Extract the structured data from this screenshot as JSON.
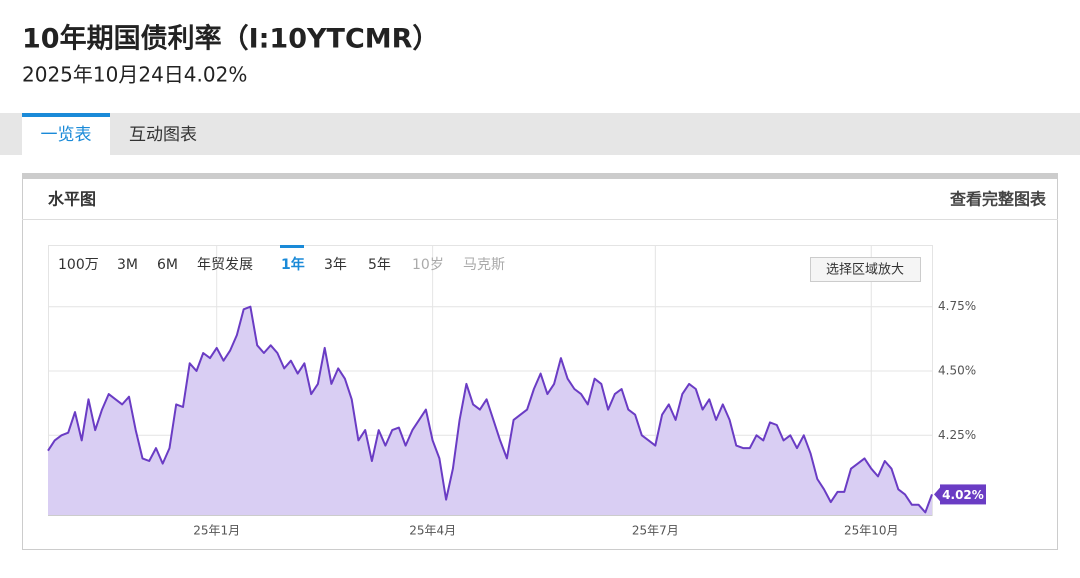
{
  "header": {
    "title": "10年期国债利率（I:10YTCMR）",
    "subtitle": "2025年10月24日4.02%"
  },
  "tabs": [
    "一览表",
    "互动图表"
  ],
  "panel": {
    "title": "水平图",
    "link": "查看完整图表"
  },
  "range_buttons": [
    "100万",
    "3M",
    "6M",
    "年贸发展",
    "1年",
    "3年",
    "5年",
    "10岁",
    "马克斯"
  ],
  "zoom_button": "选择区域放大",
  "chart_data": {
    "type": "line",
    "color": "#6a3cc4",
    "fill_color": "#d9cef3",
    "categories": [
      null,
      null,
      null,
      null,
      null,
      null,
      null,
      null,
      null,
      null,
      null,
      null,
      null,
      null,
      null,
      null,
      null,
      null,
      null,
      null,
      null,
      null,
      null,
      null,
      null,
      "25年1月",
      null,
      null,
      null,
      null,
      null,
      null,
      null,
      null,
      null,
      null,
      null,
      null,
      null,
      null,
      null,
      null,
      null,
      null,
      null,
      null,
      null,
      null,
      null,
      null,
      null,
      null,
      null,
      null,
      null,
      null,
      null,
      "25年4月",
      null,
      null,
      null,
      null,
      null,
      null,
      null,
      null,
      null,
      null,
      null,
      null,
      null,
      null,
      null,
      null,
      null,
      null,
      null,
      null,
      null,
      null,
      null,
      null,
      null,
      null,
      null,
      null,
      null,
      null,
      null,
      null,
      "25年7月",
      null,
      null,
      null,
      null,
      null,
      null,
      null,
      null,
      null,
      null,
      null,
      null,
      null,
      null,
      null,
      null,
      null,
      null,
      null,
      null,
      null,
      null,
      null,
      null,
      null,
      null,
      null,
      null,
      null,
      null,
      null,
      "25年10月",
      null,
      null,
      null,
      null,
      null,
      null,
      null,
      null,
      null
    ],
    "values": [
      4.19,
      4.23,
      4.25,
      4.26,
      4.34,
      4.23,
      4.39,
      4.27,
      4.35,
      4.41,
      4.39,
      4.37,
      4.4,
      4.27,
      4.16,
      4.15,
      4.2,
      4.14,
      4.2,
      4.37,
      4.36,
      4.53,
      4.5,
      4.57,
      4.55,
      4.59,
      4.54,
      4.58,
      4.64,
      4.74,
      4.75,
      4.6,
      4.57,
      4.6,
      4.57,
      4.51,
      4.54,
      4.49,
      4.53,
      4.41,
      4.45,
      4.59,
      4.45,
      4.51,
      4.47,
      4.39,
      4.23,
      4.27,
      4.15,
      4.27,
      4.21,
      4.27,
      4.28,
      4.21,
      4.27,
      4.31,
      4.35,
      4.23,
      4.16,
      4.0,
      4.12,
      4.31,
      4.45,
      4.37,
      4.35,
      4.39,
      4.31,
      4.23,
      4.16,
      4.31,
      4.33,
      4.35,
      4.43,
      4.49,
      4.41,
      4.45,
      4.55,
      4.47,
      4.43,
      4.41,
      4.37,
      4.47,
      4.45,
      4.35,
      4.41,
      4.43,
      4.35,
      4.33,
      4.25,
      4.23,
      4.21,
      4.33,
      4.37,
      4.31,
      4.41,
      4.45,
      4.43,
      4.35,
      4.39,
      4.31,
      4.37,
      4.31,
      4.21,
      4.2,
      4.2,
      4.25,
      4.23,
      4.3,
      4.29,
      4.23,
      4.25,
      4.2,
      4.25,
      4.18,
      4.08,
      4.04,
      3.99,
      4.03,
      4.03,
      4.12,
      4.14,
      4.16,
      4.12,
      4.09,
      4.15,
      4.12,
      4.04,
      4.02,
      3.98,
      3.98,
      3.95,
      4.02
    ],
    "last_value_label": "4.02%",
    "ylim": [
      3.94,
      4.99
    ],
    "yticks": [
      {
        "value": 4.25,
        "label": "4.25%"
      },
      {
        "value": 4.5,
        "label": "4.50%"
      },
      {
        "value": 4.75,
        "label": "4.75%"
      }
    ],
    "grid": true
  }
}
